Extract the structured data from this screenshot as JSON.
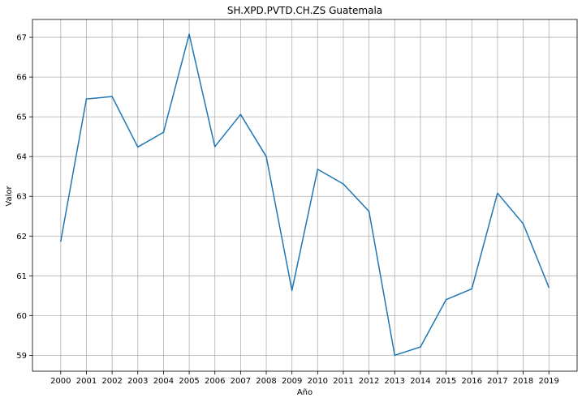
{
  "chart_data": {
    "type": "line",
    "title": "SH.XPD.PVTD.CH.ZS Guatemala",
    "xlabel": "Año",
    "ylabel": "Valor",
    "x": [
      "2000",
      "2001",
      "2002",
      "2003",
      "2004",
      "2005",
      "2006",
      "2007",
      "2008",
      "2009",
      "2010",
      "2011",
      "2012",
      "2013",
      "2014",
      "2015",
      "2016",
      "2017",
      "2018",
      "2019"
    ],
    "series": [
      {
        "values": [
          61.87,
          65.45,
          65.51,
          64.24,
          64.61,
          67.08,
          64.25,
          65.06,
          64.0,
          60.63,
          63.68,
          63.31,
          62.62,
          59.0,
          59.21,
          60.4,
          60.67,
          63.08,
          62.31,
          60.71
        ],
        "color": "#1f77b4"
      }
    ],
    "xlim": [
      1998.9,
      2020.1
    ],
    "ylim": [
      58.6,
      67.45
    ],
    "yticks": [
      59,
      60,
      61,
      62,
      63,
      64,
      65,
      66,
      67
    ],
    "grid": true,
    "legend": "none"
  }
}
